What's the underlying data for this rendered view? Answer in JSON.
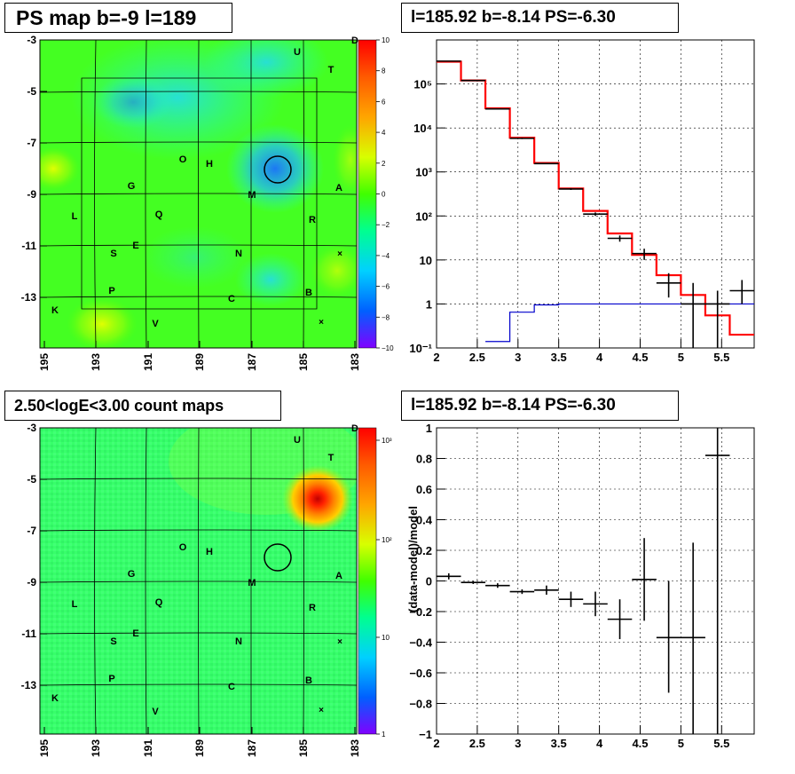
{
  "panels": {
    "tl_title": "PS map b=-9 l=189",
    "tr_title": "l=185.92 b=-8.14 PS=-6.30",
    "bl_title": "2.50<logE<3.00 count maps",
    "br_title": "l=185.92 b=-8.14 PS=-6.30"
  },
  "colors": {
    "model_line": "#ff0000",
    "background_line": "#0000cc",
    "data_marker": "#000000",
    "grid": "#000000"
  },
  "maps": {
    "x_ticks": [
      "195",
      "193",
      "191",
      "189",
      "187",
      "185",
      "183"
    ],
    "y_ticks": [
      "-3",
      "-5",
      "-7",
      "-9",
      "-11",
      "-13"
    ],
    "labels": [
      "D",
      "U",
      "T",
      "O",
      "H",
      "G",
      "M",
      "A",
      "L",
      "Q",
      "R",
      "E",
      "S",
      "N",
      "P",
      "C",
      "B",
      "K",
      "V"
    ],
    "ps_colorbar_ticks": [
      "10",
      "8",
      "6",
      "4",
      "2",
      "0",
      "−2",
      "−4",
      "−6",
      "−8",
      "−10"
    ],
    "count_colorbar_ticks": [
      "10³",
      "10²",
      "10",
      "1"
    ]
  },
  "chart_data": [
    {
      "type": "line",
      "title": "l=185.92 b=-8.14 PS=-6.30",
      "xlabel": "",
      "ylabel": "",
      "xlim": [
        2,
        5.9
      ],
      "ylim": [
        0.1,
        1000000
      ],
      "y_scale": "log",
      "grid": true,
      "x_ticks": [
        "2",
        "2.5",
        "3",
        "3.5",
        "4",
        "4.5",
        "5",
        "5.5"
      ],
      "y_ticks": [
        "10⁻¹",
        "1",
        "10",
        "10²",
        "10³",
        "10⁴",
        "10⁵"
      ],
      "series": [
        {
          "name": "",
          "kind": "step",
          "edges": [
            2.0,
            2.3,
            2.6,
            2.9,
            3.2,
            3.5,
            3.8,
            4.1,
            4.4,
            4.7,
            5.0,
            5.3,
            5.6,
            5.9
          ],
          "values": [
            320000,
            120000,
            28000,
            6000,
            1600,
            420,
            130,
            40,
            13,
            4.5,
            1.6,
            0.55,
            0.2
          ]
        },
        {
          "name": "",
          "kind": "step",
          "edges": [
            2.6,
            2.9,
            3.2,
            3.5,
            5.9
          ],
          "values": [
            0.14,
            0.65,
            0.95,
            1.0
          ]
        },
        {
          "name": "",
          "kind": "points",
          "points": [
            {
              "x": 2.15,
              "y": 330000,
              "xerr": 0.15,
              "ylo": 330000,
              "yhi": 330000
            },
            {
              "x": 2.45,
              "y": 120000,
              "xerr": 0.15,
              "ylo": 120000,
              "yhi": 120000
            },
            {
              "x": 2.75,
              "y": 27000,
              "xerr": 0.15,
              "ylo": 27000,
              "yhi": 27000
            },
            {
              "x": 3.05,
              "y": 5800,
              "xerr": 0.15,
              "ylo": 5600,
              "yhi": 6000
            },
            {
              "x": 3.35,
              "y": 1550,
              "xerr": 0.15,
              "ylo": 1500,
              "yhi": 1600
            },
            {
              "x": 3.65,
              "y": 410,
              "xerr": 0.15,
              "ylo": 390,
              "yhi": 430
            },
            {
              "x": 3.95,
              "y": 110,
              "xerr": 0.15,
              "ylo": 100,
              "yhi": 120
            },
            {
              "x": 4.25,
              "y": 31,
              "xerr": 0.15,
              "ylo": 26,
              "yhi": 36
            },
            {
              "x": 4.55,
              "y": 14,
              "xerr": 0.15,
              "ylo": 10,
              "yhi": 18
            },
            {
              "x": 4.85,
              "y": 3,
              "xerr": 0.15,
              "ylo": 1.4,
              "yhi": 5
            },
            {
              "x": 5.15,
              "y": 1,
              "xerr": 0.15,
              "ylo": 0.1,
              "yhi": 3
            },
            {
              "x": 5.45,
              "y": 1,
              "xerr": 0.15,
              "ylo": 0.1,
              "yhi": 2
            },
            {
              "x": 5.75,
              "y": 2,
              "xerr": 0.15,
              "ylo": 1,
              "yhi": 3.5
            }
          ]
        }
      ]
    },
    {
      "type": "scatter",
      "title": "l=185.92 b=-8.14 PS=-6.30",
      "xlabel": "",
      "ylabel": "(data-model)/model",
      "xlim": [
        2,
        5.9
      ],
      "ylim": [
        -1,
        1
      ],
      "grid": true,
      "x_ticks": [
        "2",
        "2.5",
        "3",
        "3.5",
        "4",
        "4.5",
        "5",
        "5.5"
      ],
      "y_ticks": [
        "1",
        "0.8",
        "0.6",
        "0.4",
        "0.2",
        "0",
        "−0.2",
        "−0.4",
        "−0.6",
        "−0.8",
        "−1"
      ],
      "series": [
        {
          "name": "",
          "points": [
            {
              "x": 2.15,
              "y": 0.03,
              "xerr": 0.15,
              "ylo": 0.01,
              "yhi": 0.05
            },
            {
              "x": 2.45,
              "y": -0.01,
              "xerr": 0.15,
              "ylo": -0.02,
              "yhi": 0.0
            },
            {
              "x": 2.75,
              "y": -0.03,
              "xerr": 0.15,
              "ylo": -0.045,
              "yhi": -0.015
            },
            {
              "x": 3.05,
              "y": -0.07,
              "xerr": 0.15,
              "ylo": -0.085,
              "yhi": -0.055
            },
            {
              "x": 3.35,
              "y": -0.06,
              "xerr": 0.15,
              "ylo": -0.09,
              "yhi": -0.03
            },
            {
              "x": 3.65,
              "y": -0.12,
              "xerr": 0.15,
              "ylo": -0.17,
              "yhi": -0.07
            },
            {
              "x": 3.95,
              "y": -0.15,
              "xerr": 0.15,
              "ylo": -0.23,
              "yhi": -0.07
            },
            {
              "x": 4.25,
              "y": -0.25,
              "xerr": 0.15,
              "ylo": -0.38,
              "yhi": -0.12
            },
            {
              "x": 4.55,
              "y": 0.01,
              "xerr": 0.15,
              "ylo": -0.26,
              "yhi": 0.28
            },
            {
              "x": 4.85,
              "y": -0.37,
              "xerr": 0.15,
              "ylo": -0.73,
              "yhi": 0.0
            },
            {
              "x": 5.15,
              "y": -0.37,
              "xerr": 0.15,
              "ylo": -1.0,
              "yhi": 0.25
            },
            {
              "x": 5.45,
              "y": 0.82,
              "xerr": 0.15,
              "ylo": -1.0,
              "yhi": 1.0
            }
          ]
        }
      ]
    }
  ]
}
